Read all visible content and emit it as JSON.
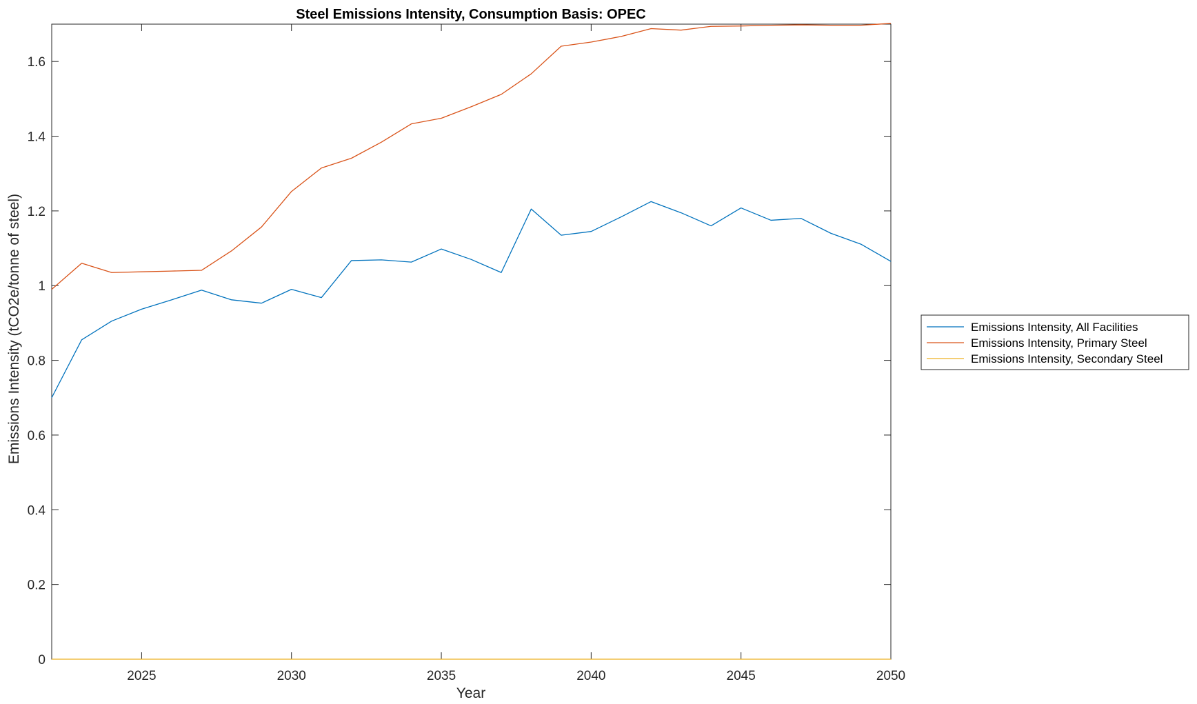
{
  "chart_data": {
    "type": "line",
    "title": "Steel Emissions Intensity, Consumption Basis: OPEC",
    "xlabel": "Year",
    "ylabel": "Emissions Intensity (tCO2e/tonne of steel)",
    "xlim": [
      2022,
      2050
    ],
    "ylim": [
      0,
      1.7
    ],
    "xticks": [
      2025,
      2030,
      2035,
      2040,
      2045,
      2050
    ],
    "yticks": [
      0,
      0.2,
      0.4,
      0.6,
      0.8,
      1,
      1.2,
      1.4,
      1.6
    ],
    "ytick_labels": [
      "0",
      "0.2",
      "0.4",
      "0.6",
      "0.8",
      "1",
      "1.2",
      "1.4",
      "1.6"
    ],
    "grid": false,
    "legend_position": "outside-right",
    "x": [
      2022,
      2023,
      2024,
      2025,
      2026,
      2027,
      2028,
      2029,
      2030,
      2031,
      2032,
      2033,
      2034,
      2035,
      2036,
      2037,
      2038,
      2039,
      2040,
      2041,
      2042,
      2043,
      2044,
      2045,
      2046,
      2047,
      2048,
      2049,
      2050
    ],
    "series": [
      {
        "name": "Emissions Intensity, All Facilities",
        "color": "#0072BD",
        "values": [
          0.7,
          0.855,
          0.905,
          0.937,
          0.962,
          0.988,
          0.962,
          0.953,
          0.99,
          0.968,
          1.067,
          1.069,
          1.063,
          1.098,
          1.07,
          1.035,
          1.205,
          1.135,
          1.145,
          1.184,
          1.225,
          1.195,
          1.16,
          1.208,
          1.175,
          1.18,
          1.14,
          1.111,
          1.065
        ]
      },
      {
        "name": "Emissions Intensity, Primary Steel",
        "color": "#D95319",
        "values": [
          0.99,
          1.06,
          1.035,
          1.037,
          1.039,
          1.041,
          1.093,
          1.157,
          1.252,
          1.315,
          1.341,
          1.384,
          1.433,
          1.448,
          1.479,
          1.512,
          1.567,
          1.641,
          1.652,
          1.667,
          1.688,
          1.684,
          1.694,
          1.695,
          1.697,
          1.698,
          1.697,
          1.697,
          1.702
        ]
      },
      {
        "name": "Emissions Intensity, Secondary Steel",
        "color": "#EDB120",
        "values": [
          0,
          0,
          0,
          0,
          0,
          0,
          0,
          0,
          0,
          0,
          0,
          0,
          0,
          0,
          0,
          0,
          0,
          0,
          0,
          0,
          0,
          0,
          0,
          0,
          0,
          0,
          0,
          0,
          0
        ]
      }
    ]
  }
}
